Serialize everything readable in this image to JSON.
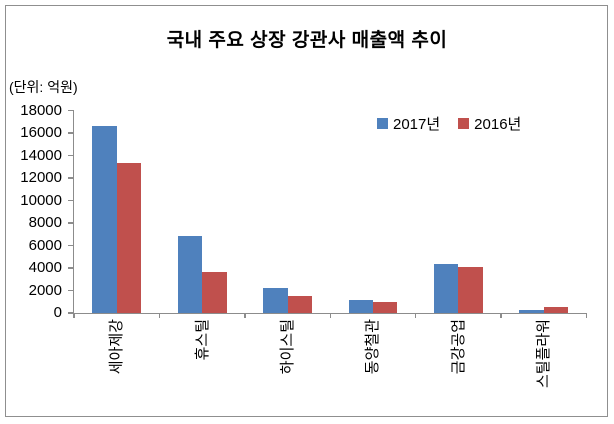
{
  "chart_data": {
    "type": "bar",
    "title": "국내 주요 상장 강관사 매출액 추이",
    "unit_label": "(단위: 억원)",
    "categories": [
      "세아제강",
      "휴스틸",
      "하이스틸",
      "동양철관",
      "금강공업",
      "스틸플라워"
    ],
    "series": [
      {
        "name": "2017년",
        "color": "#4F81BD",
        "values": [
          16600,
          6850,
          2200,
          1200,
          4400,
          250
        ]
      },
      {
        "name": "2016년",
        "color": "#C0504D",
        "values": [
          13300,
          3650,
          1500,
          1000,
          4050,
          550
        ]
      }
    ],
    "xlabel": "",
    "ylabel": "",
    "ylim": [
      0,
      18000
    ],
    "ytick_step": 2000,
    "grid": false,
    "legend_position": "top-right-inside",
    "axis_color": "#8c8c8c",
    "text_color": "#000000"
  }
}
